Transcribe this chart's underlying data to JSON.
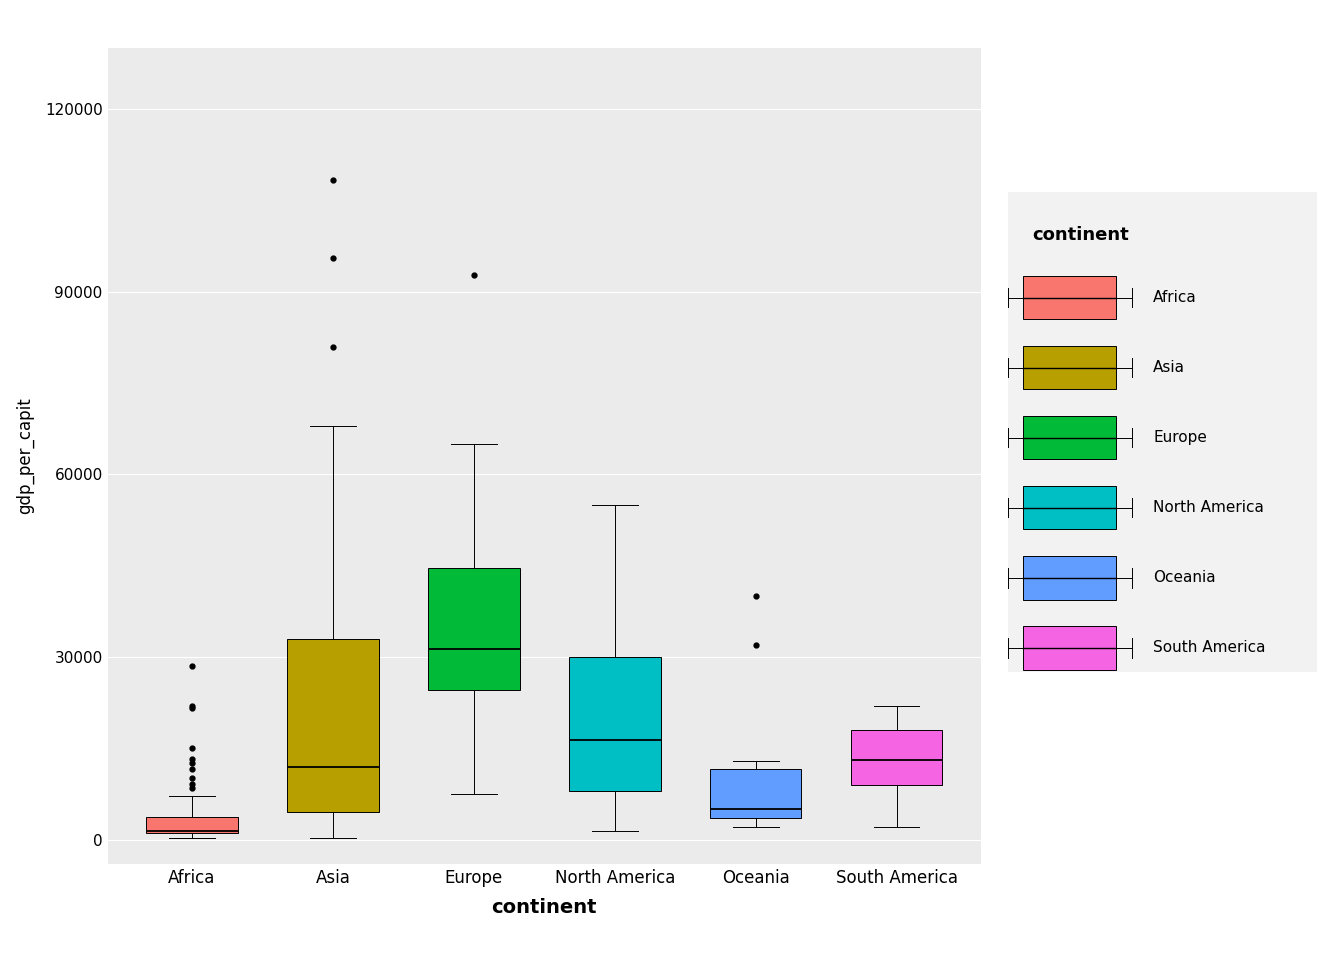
{
  "continents": [
    "Africa",
    "Asia",
    "Europe",
    "North America",
    "Oceania",
    "South America"
  ],
  "colors": {
    "Africa": "#F8766D",
    "Asia": "#B79F00",
    "Europe": "#00BA38",
    "North America": "#00BFC4",
    "Oceania": "#619CFF",
    "South America": "#F564E3"
  },
  "box_stats": {
    "Africa": {
      "whislo": 241,
      "q1": 1116,
      "med": 1452,
      "q3": 3794,
      "whishi": 7093,
      "fliers": [
        8458,
        9135,
        10134,
        11626,
        12521,
        13206,
        15113,
        21951,
        21688,
        28570
      ]
    },
    "Asia": {
      "whislo": 331,
      "q1": 4500,
      "med": 12000,
      "q3": 33000,
      "whishi": 68000,
      "fliers": [
        80895,
        95458,
        108382
      ]
    },
    "Europe": {
      "whislo": 7500,
      "q1": 24521,
      "med": 31254,
      "q3": 44684,
      "whishi": 65000,
      "fliers": [
        92756
      ]
    },
    "North America": {
      "whislo": 1452,
      "q1": 7954,
      "med": 16426,
      "q3": 30000,
      "whishi": 55000,
      "fliers": []
    },
    "Oceania": {
      "whislo": 2090,
      "q1": 3500,
      "med": 5100,
      "q3": 11600,
      "whishi": 12890,
      "fliers": [
        32000,
        40000
      ]
    },
    "South America": {
      "whislo": 2000,
      "q1": 9000,
      "med": 13000,
      "q3": 18000,
      "whishi": 22000,
      "fliers": []
    }
  },
  "ylim": [
    -4000,
    130000
  ],
  "yticks": [
    0,
    30000,
    60000,
    90000,
    120000
  ],
  "ytick_labels": [
    "0",
    "30000",
    "60000",
    "90000",
    "120000"
  ],
  "xlabel": "continent",
  "ylabel": "gdp_per_capit",
  "background_color": "#EBEBEB",
  "grid_color": "#FFFFFF",
  "legend_title": "continent",
  "box_width": 0.65
}
